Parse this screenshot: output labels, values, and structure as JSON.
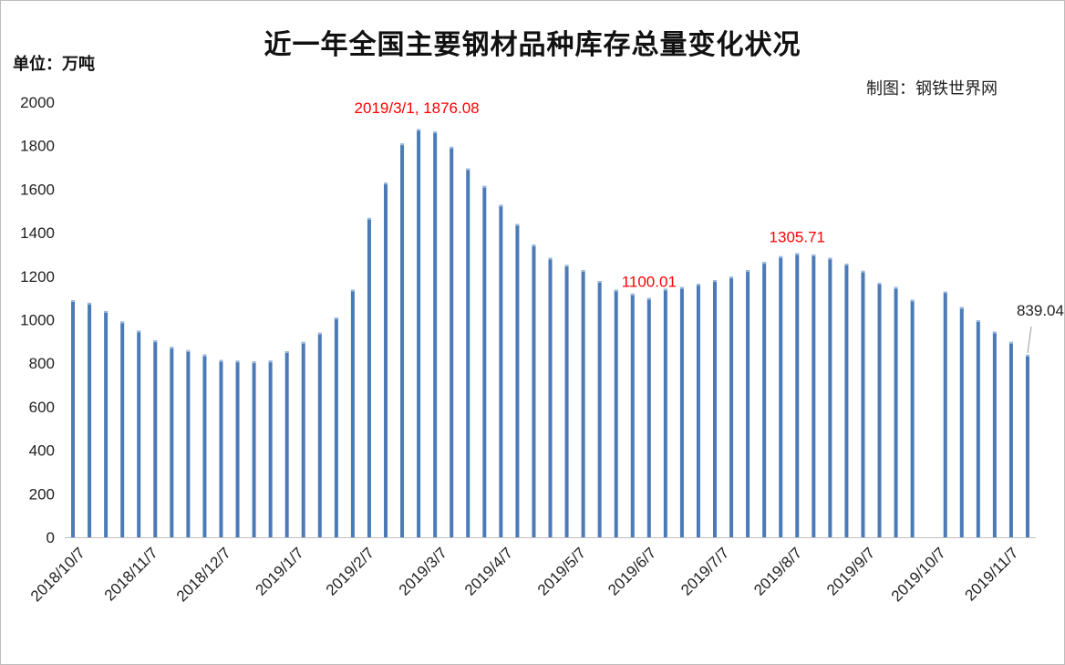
{
  "chart_data": {
    "type": "bar",
    "title": "近一年全国主要钢材品种库存总量变化状况",
    "unit_label": "单位：万吨",
    "source_label": "制图：钢铁世界网",
    "ylim": [
      0,
      2000
    ],
    "yticks": [
      0,
      200,
      400,
      600,
      800,
      1000,
      1200,
      1400,
      1600,
      1800,
      2000
    ],
    "x_tick_labels": [
      "2018/10/7",
      "2018/11/7",
      "2018/12/7",
      "2019/1/7",
      "2019/2/7",
      "2019/3/7",
      "2019/4/7",
      "2019/5/7",
      "2019/6/7",
      "2019/7/7",
      "2019/8/7",
      "2019/9/7",
      "2019/10/7",
      "2019/11/7"
    ],
    "x_tick_positions": [
      0,
      4.43,
      8.86,
      13.29,
      17.57,
      22,
      26,
      30.43,
      34.71,
      39.14,
      43.57,
      48,
      52.29,
      56.71
    ],
    "bar_color": "#4a7ab7",
    "series": [
      {
        "values": [
          1090,
          1078,
          1040,
          992,
          950,
          905,
          875,
          860,
          840,
          815,
          812,
          808,
          812,
          855,
          898,
          940,
          1010,
          1138,
          1468,
          1630,
          1810,
          1876.08,
          1865,
          1795,
          1695,
          1615,
          1528,
          1440,
          1345,
          1285,
          1252,
          1228,
          1178,
          1138,
          1120,
          1100.01,
          1142,
          1150,
          1165,
          1182,
          1198,
          1228,
          1265,
          1292,
          1305.71,
          1300,
          1285,
          1258,
          1225,
          1170,
          1150,
          1092,
          null,
          1130,
          1058,
          998,
          945,
          898,
          839.04
        ]
      }
    ],
    "annotations": [
      {
        "index": 21,
        "text": "2019/3/1, 1876.08",
        "color": "#ff0000"
      },
      {
        "index": 35,
        "text": "1100.01",
        "color": "#ff0000"
      },
      {
        "index": 44,
        "text": "1305.71",
        "color": "#ff0000"
      },
      {
        "index": 58,
        "text": "839.04",
        "color": "#222222"
      }
    ]
  }
}
